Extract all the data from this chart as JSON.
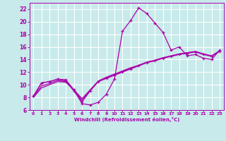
{
  "xlabel": "Windchill (Refroidissement éolien,°C)",
  "background_color": "#c8eaea",
  "grid_color": "#b0d8d8",
  "line_color": "#aa00aa",
  "xlim": [
    -0.5,
    23.5
  ],
  "ylim": [
    6,
    23
  ],
  "yticks": [
    6,
    8,
    10,
    12,
    14,
    16,
    18,
    20,
    22
  ],
  "xticks": [
    0,
    1,
    2,
    3,
    4,
    5,
    6,
    7,
    8,
    9,
    10,
    11,
    12,
    13,
    14,
    15,
    16,
    17,
    18,
    19,
    20,
    21,
    22,
    23
  ],
  "hours": [
    0,
    1,
    2,
    3,
    4,
    5,
    6,
    7,
    8,
    9,
    10,
    11,
    12,
    13,
    14,
    15,
    16,
    17,
    18,
    19,
    20,
    21,
    22,
    23
  ],
  "temp": [
    8.2,
    10.3,
    10.5,
    10.9,
    10.8,
    9.2,
    7.0,
    6.8,
    7.2,
    8.5,
    10.9,
    18.5,
    20.2,
    22.2,
    21.3,
    19.8,
    18.3,
    15.5,
    16.0,
    14.6,
    14.8,
    14.2,
    14.0,
    15.5
  ],
  "wc_main": [
    8.2,
    10.3,
    10.5,
    10.9,
    10.6,
    9.0,
    7.3,
    9.0,
    10.5,
    11.0,
    11.5,
    12.0,
    12.5,
    13.0,
    13.5,
    13.8,
    14.2,
    14.5,
    14.8,
    15.0,
    15.2,
    14.8,
    14.5,
    15.3
  ],
  "wc_line1": [
    8.0,
    9.5,
    10.0,
    10.5,
    10.4,
    9.2,
    7.8,
    9.2,
    10.6,
    11.2,
    11.7,
    12.2,
    12.7,
    13.1,
    13.6,
    13.9,
    14.3,
    14.6,
    14.9,
    15.1,
    15.3,
    14.9,
    14.6,
    15.4
  ],
  "wc_line2": [
    8.1,
    9.8,
    10.2,
    10.7,
    10.5,
    9.1,
    7.55,
    9.1,
    10.55,
    11.1,
    11.6,
    12.1,
    12.6,
    13.05,
    13.55,
    13.85,
    14.25,
    14.55,
    14.85,
    15.05,
    15.25,
    14.85,
    14.55,
    15.35
  ]
}
